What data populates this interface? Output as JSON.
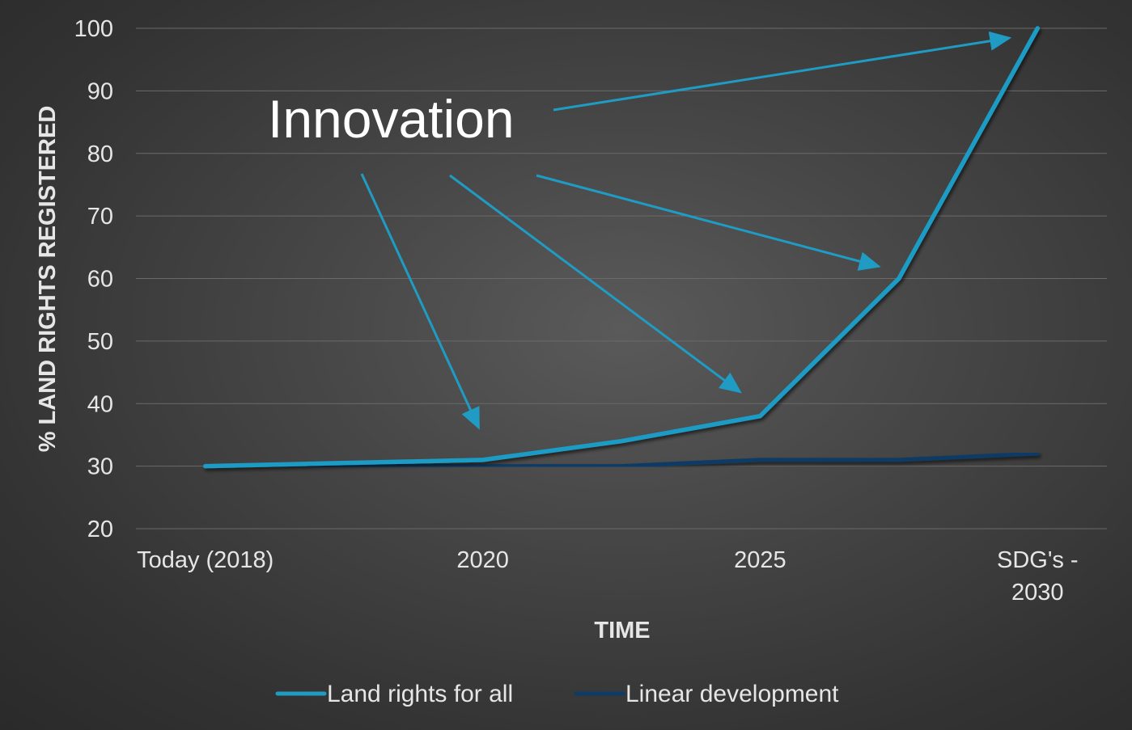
{
  "chart_data": {
    "type": "line",
    "categories": [
      "Today (2018)",
      "",
      "2020",
      "",
      "2025",
      "",
      "SDG's - 2030"
    ],
    "category_lines": [
      [
        "Today (2018)"
      ],
      [
        ""
      ],
      [
        "2020"
      ],
      [
        ""
      ],
      [
        "2025"
      ],
      [
        ""
      ],
      [
        "SDG's -",
        "2030"
      ]
    ],
    "series": [
      {
        "name": "Land rights for all",
        "color": "#1f9bc4",
        "values": [
          30,
          null,
          31,
          34,
          38,
          60,
          100
        ]
      },
      {
        "name": "Linear development",
        "color": "#0f3b66",
        "values": [
          30,
          null,
          30,
          30,
          31,
          31,
          32
        ]
      }
    ],
    "x_values_note": "",
    "xlabel": "TIME",
    "ylabel": "% LAND RIGHTS REGISTERED",
    "ylim": [
      20,
      100
    ],
    "yticks": [
      20,
      30,
      40,
      50,
      60,
      70,
      80,
      90,
      100
    ],
    "grid": true,
    "legend_position": "bottom",
    "annotation": {
      "text": "Innovation",
      "color": "#1f9bc4"
    }
  }
}
